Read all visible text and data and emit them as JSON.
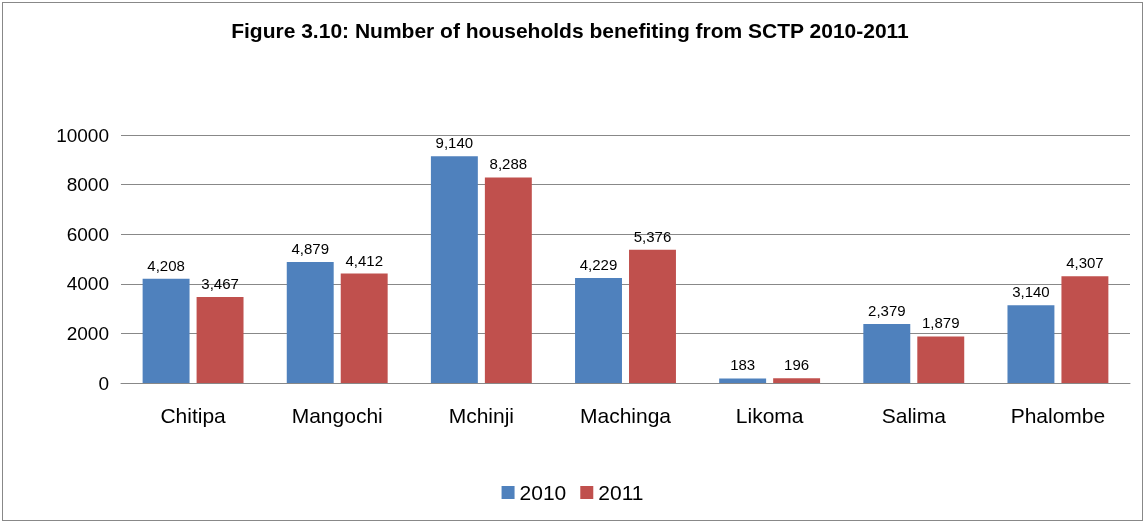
{
  "chart_data": {
    "type": "bar",
    "title": "Figure 3.10: Number of households benefiting from SCTP 2010-2011",
    "categories": [
      "Chitipa",
      "Mangochi",
      "Mchinji",
      "Machinga",
      "Likoma",
      "Salima",
      "Phalombe"
    ],
    "series": [
      {
        "name": "2010",
        "color": "#4f81bd",
        "values": [
          4208,
          4879,
          9140,
          4229,
          183,
          2379,
          3140
        ],
        "value_labels": [
          "4,208",
          "4,879",
          "9,140",
          "4,229",
          "183",
          "2,379",
          "3,140"
        ]
      },
      {
        "name": "2011",
        "color": "#c0504d",
        "values": [
          3467,
          4412,
          8288,
          5376,
          196,
          1879,
          4307
        ],
        "value_labels": [
          "3,467",
          "4,412",
          "8,288",
          "5,376",
          "196",
          "1,879",
          "4,307"
        ]
      }
    ],
    "ylim": [
      0,
      10000
    ],
    "yticks": [
      0,
      2000,
      4000,
      6000,
      8000,
      10000
    ],
    "grid": "y",
    "legend": "bottom"
  }
}
